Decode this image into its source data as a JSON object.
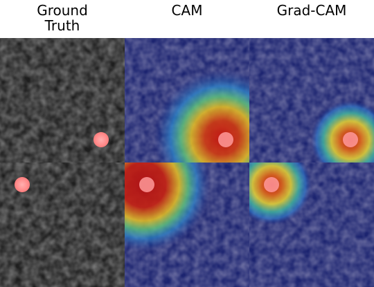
{
  "columns": [
    {
      "title": "Ground\nTruth"
    },
    {
      "title": "CAM"
    },
    {
      "title": "Grad-CAM"
    }
  ],
  "rows": [
    {
      "marker": "bottom-right"
    },
    {
      "marker": "top-left"
    }
  ],
  "colors": {
    "marker": "#ff8a8a",
    "heatmap_low": "#26338f",
    "heatmap_high": "#c81414",
    "texture": "#3a3a3a"
  }
}
